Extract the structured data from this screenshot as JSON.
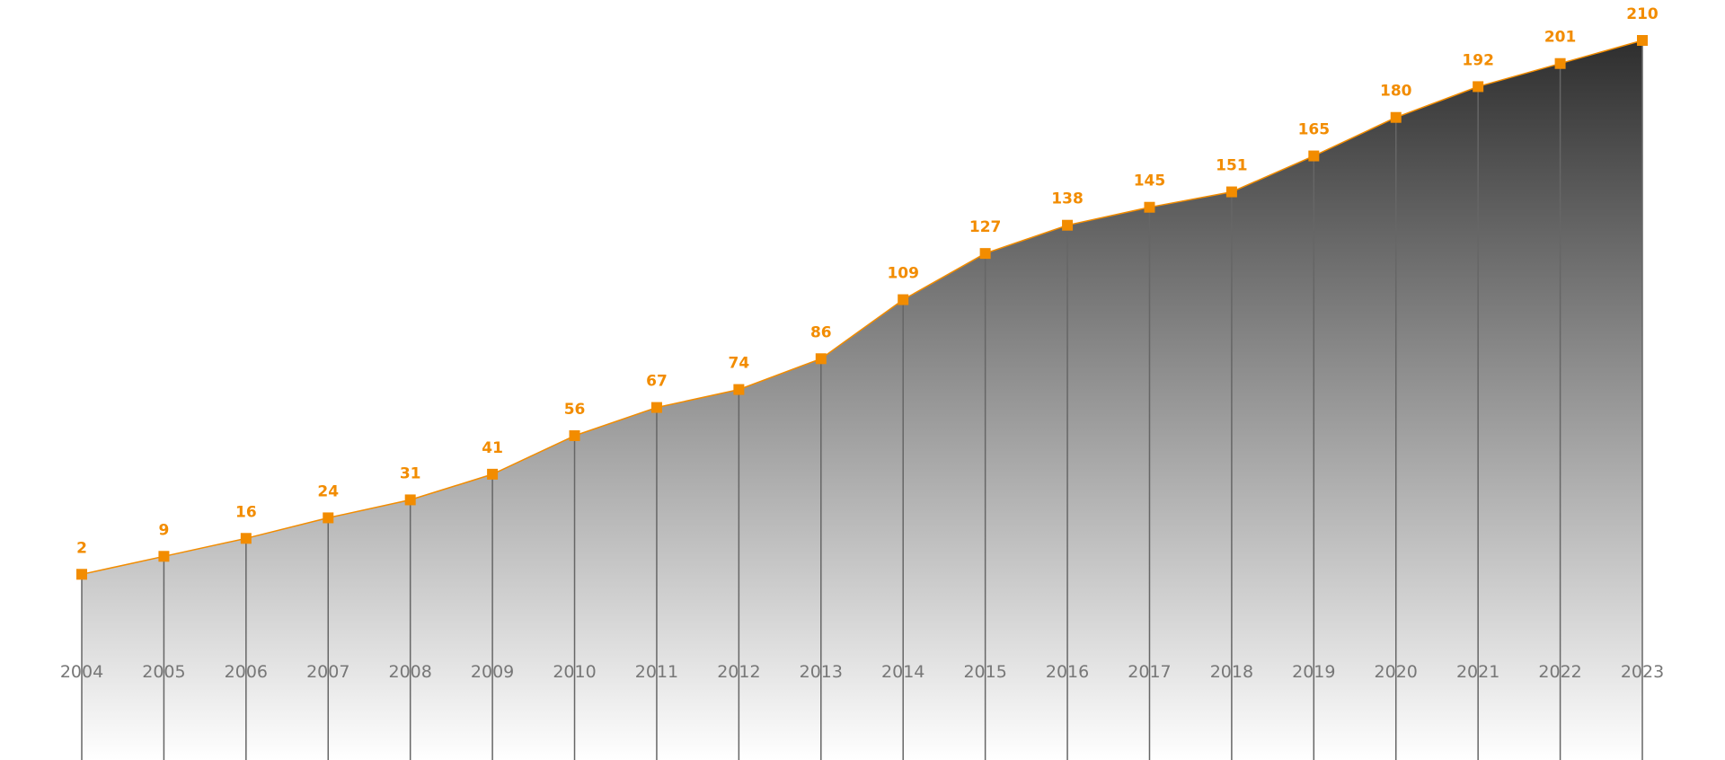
{
  "chart_data": {
    "type": "area",
    "categories": [
      "2004",
      "2005",
      "2006",
      "2007",
      "2008",
      "2009",
      "2010",
      "2011",
      "2012",
      "2013",
      "2014",
      "2015",
      "2016",
      "2017",
      "2018",
      "2019",
      "2020",
      "2021",
      "2022",
      "2023"
    ],
    "values": [
      2,
      9,
      16,
      24,
      31,
      41,
      56,
      67,
      74,
      86,
      109,
      127,
      138,
      145,
      151,
      165,
      180,
      192,
      201,
      210
    ],
    "color": "#f28c00"
  }
}
